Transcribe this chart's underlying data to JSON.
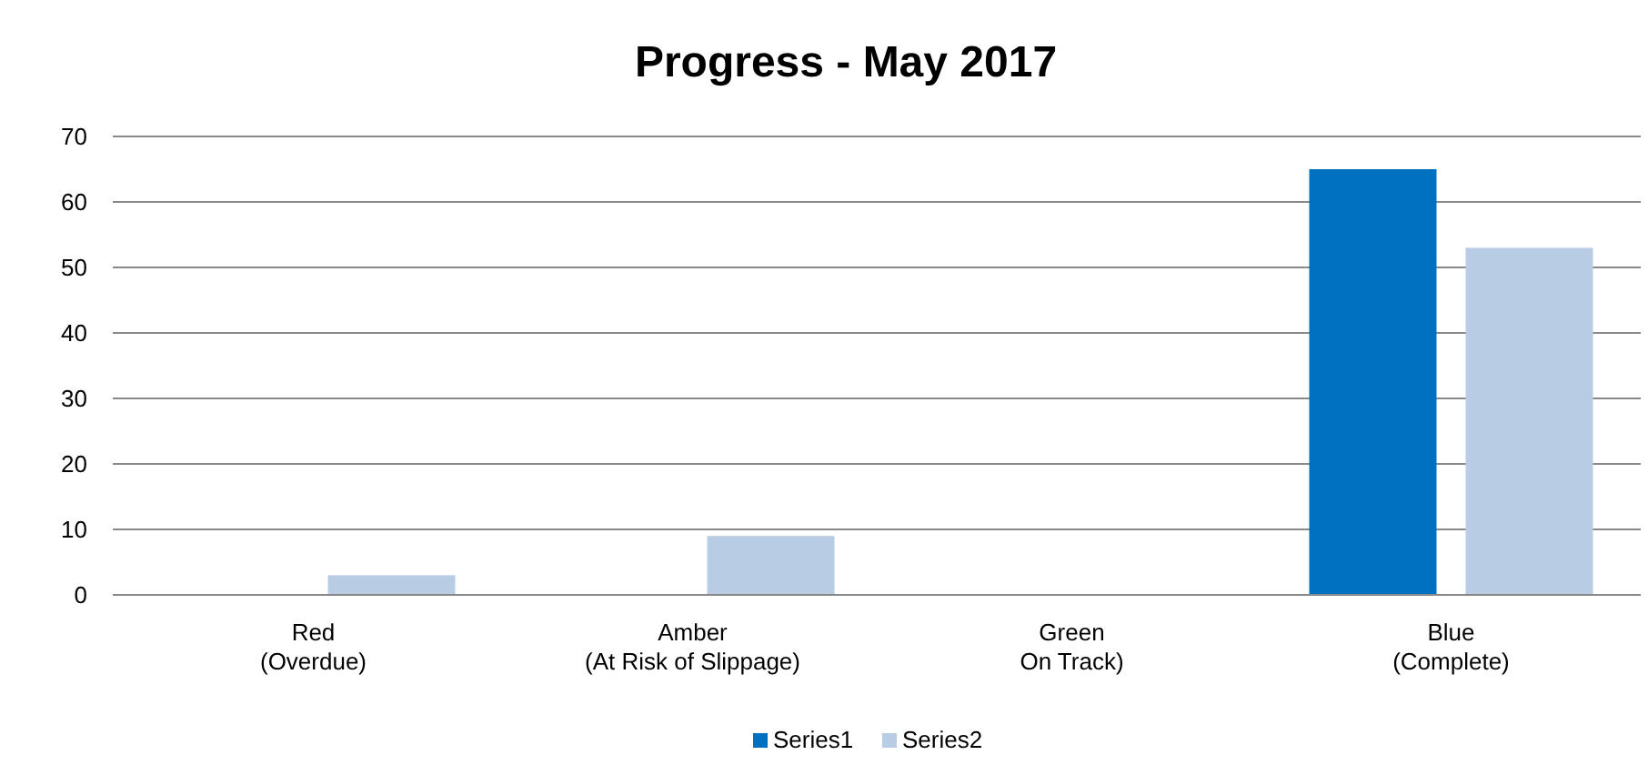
{
  "chart_data": {
    "type": "bar",
    "title": "Progress - May 2017",
    "categories": [
      "Red\n(Overdue)",
      "Amber\n(At Risk of Slippage)",
      "Green\nOn Track)",
      "Blue\n(Complete)"
    ],
    "series": [
      {
        "name": "Series1",
        "color": "#0070c0",
        "values": [
          0,
          0,
          0,
          65
        ]
      },
      {
        "name": "Series2",
        "color": "#b8cce4",
        "values": [
          3,
          9,
          0,
          53
        ]
      }
    ],
    "ylim": [
      0,
      70
    ],
    "yticks": [
      0,
      10,
      20,
      30,
      40,
      50,
      60,
      70
    ],
    "grid": "y",
    "legend": "bottom"
  }
}
